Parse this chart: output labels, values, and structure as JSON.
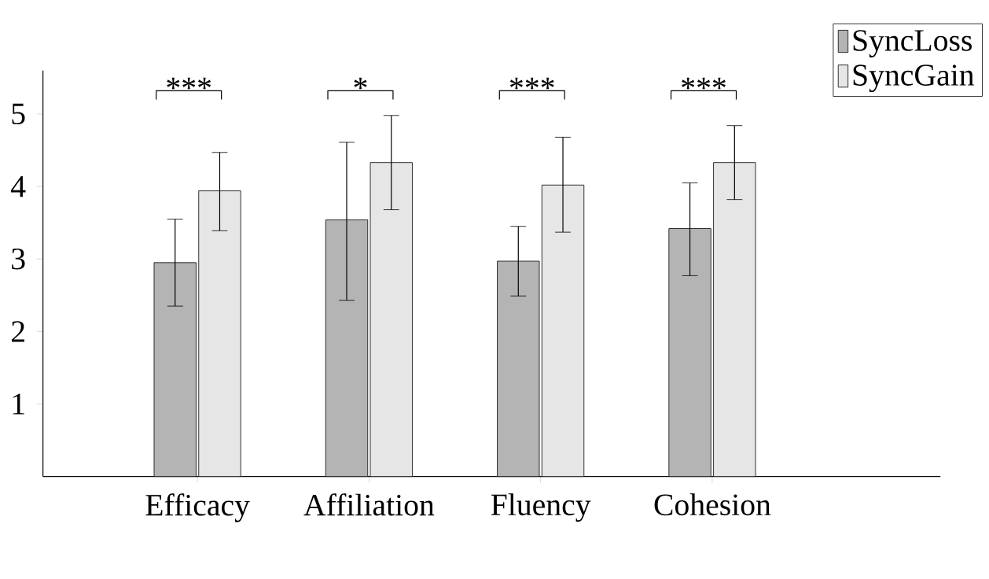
{
  "chart_data": {
    "type": "bar",
    "categories": [
      "Efficacy",
      "Affiliation",
      "Fluency",
      "Cohesion"
    ],
    "series": [
      {
        "name": "SyncLoss",
        "color": "#b4b4b4",
        "values": [
          2.95,
          3.54,
          2.97,
          3.42
        ],
        "errors": [
          [
            2.35,
            3.55
          ],
          [
            2.43,
            4.61
          ],
          [
            2.49,
            3.45
          ],
          [
            2.77,
            4.05
          ]
        ]
      },
      {
        "name": "SyncGain",
        "color": "#e6e6e6",
        "values": [
          3.94,
          4.33,
          4.02,
          4.33
        ],
        "errors": [
          [
            3.39,
            4.47
          ],
          [
            3.68,
            4.98
          ],
          [
            3.37,
            4.68
          ],
          [
            3.82,
            4.84
          ]
        ]
      }
    ],
    "ylim": [
      0,
      5.6
    ],
    "yticks": [
      1,
      2,
      3,
      4,
      5
    ],
    "annotations": [
      "***",
      "*",
      "***",
      "***"
    ],
    "legend": "top right",
    "grid": false
  }
}
